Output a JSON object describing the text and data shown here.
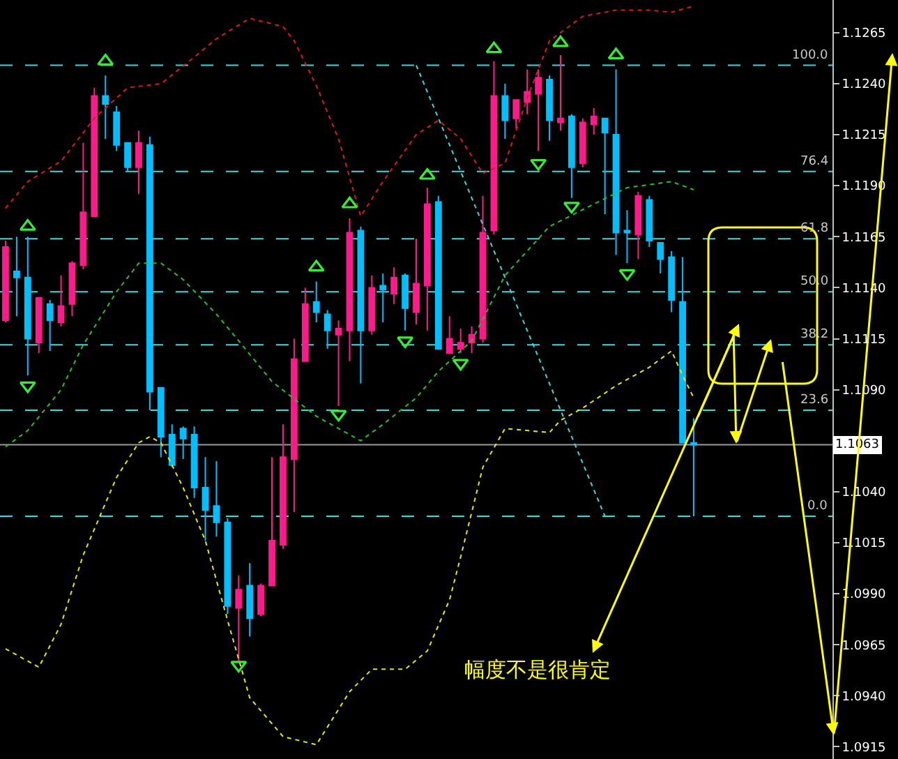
{
  "chart_data": {
    "type": "candlestick",
    "categories": [
      null,
      null,
      null,
      null,
      null,
      null,
      null,
      null,
      null,
      null,
      null,
      null,
      null,
      null,
      null,
      null,
      null,
      null,
      null,
      null,
      null,
      null,
      null,
      null,
      null,
      null,
      null,
      null,
      null,
      null,
      null,
      null,
      null,
      null,
      null,
      null,
      null,
      null,
      null,
      null,
      null,
      null,
      null,
      null,
      null,
      null,
      null,
      null,
      null,
      null,
      null,
      null,
      null,
      null,
      null,
      null,
      null,
      null,
      null,
      null,
      null,
      null,
      null,
      null,
      null,
      null,
      null,
      null,
      null,
      null,
      null,
      null,
      null,
      null,
      null
    ],
    "ohlc": [
      [
        1.1124,
        1.1163,
        1.1123,
        1.116
      ],
      [
        1.1148,
        1.1165,
        1.1126,
        1.1145
      ],
      [
        1.1145,
        1.1165,
        1.1097,
        1.1115
      ],
      [
        1.1113,
        1.1135,
        1.1108,
        1.1135
      ],
      [
        1.1132,
        1.1134,
        1.1109,
        1.1124
      ],
      [
        1.1123,
        1.1146,
        1.1121,
        1.1131
      ],
      [
        1.1132,
        1.1153,
        1.1126,
        1.1152
      ],
      [
        1.1151,
        1.1211,
        1.1149,
        1.1177
      ],
      [
        1.1175,
        1.1238,
        1.1175,
        1.1234
      ],
      [
        1.1234,
        1.1244,
        1.1213,
        1.123
      ],
      [
        1.1226,
        1.1229,
        1.1207,
        1.121
      ],
      [
        1.1211,
        1.1211,
        1.1197,
        1.1199
      ],
      [
        1.1199,
        1.1217,
        1.1186,
        1.1211
      ],
      [
        1.121,
        1.1214,
        1.108,
        1.1089
      ],
      [
        1.1091,
        1.1091,
        1.1057,
        1.1067
      ],
      [
        1.1068,
        1.1073,
        1.1052,
        1.1053
      ],
      [
        1.1071,
        1.1072,
        1.1056,
        1.1066
      ],
      [
        1.1068,
        1.1072,
        1.1037,
        1.1042
      ],
      [
        1.1042,
        1.1057,
        1.1016,
        1.1031
      ],
      [
        1.1033,
        1.1055,
        1.1018,
        1.1025
      ],
      [
        1.1025,
        1.1027,
        1.098,
        1.0984
      ],
      [
        1.0983,
        1.0999,
        1.0957,
        1.0992
      ],
      [
        1.0994,
        1.1005,
        1.0969,
        1.0978
      ],
      [
        1.098,
        1.0995,
        1.0979,
        1.0994
      ],
      [
        1.0994,
        1.1057,
        1.0994,
        1.1016
      ],
      [
        1.1014,
        1.1073,
        1.1012,
        1.1057
      ],
      [
        1.1056,
        1.1115,
        1.103,
        1.1105
      ],
      [
        1.1104,
        1.114,
        1.1104,
        1.1132
      ],
      [
        1.1133,
        1.1143,
        1.1123,
        1.1128
      ],
      [
        1.1127,
        1.1129,
        1.111,
        1.1119
      ],
      [
        1.1117,
        1.1124,
        1.1082,
        1.112
      ],
      [
        1.1119,
        1.1174,
        1.1104,
        1.1167
      ],
      [
        1.1168,
        1.117,
        1.1093,
        1.1119
      ],
      [
        1.1119,
        1.1146,
        1.1117,
        1.114
      ],
      [
        1.1141,
        1.1147,
        1.1123,
        1.1139
      ],
      [
        1.1137,
        1.115,
        1.1132,
        1.1145
      ],
      [
        1.1146,
        1.1147,
        1.1119,
        1.113
      ],
      [
        1.1128,
        1.1164,
        1.1122,
        1.1142
      ],
      [
        1.1141,
        1.1189,
        1.1119,
        1.1181
      ],
      [
        1.1182,
        1.1185,
        1.111,
        1.111
      ],
      [
        1.1108,
        1.1126,
        1.1108,
        1.1115
      ],
      [
        1.111,
        1.112,
        1.1108,
        1.1113
      ],
      [
        1.1113,
        1.1121,
        1.1108,
        1.1117
      ],
      [
        1.1115,
        1.1185,
        1.1113,
        1.1167
      ],
      [
        1.1168,
        1.1251,
        1.1166,
        1.1234
      ],
      [
        1.1234,
        1.124,
        1.1213,
        1.1222
      ],
      [
        1.1223,
        1.1232,
        1.1218,
        1.1232
      ],
      [
        1.1231,
        1.1247,
        1.1225,
        1.1236
      ],
      [
        1.1235,
        1.1247,
        1.1207,
        1.1243
      ],
      [
        1.1242,
        1.1244,
        1.1212,
        1.1222
      ],
      [
        1.1221,
        1.1254,
        1.1217,
        1.1223
      ],
      [
        1.1224,
        1.1225,
        1.1184,
        1.1199
      ],
      [
        1.1201,
        1.1223,
        1.1199,
        1.1221
      ],
      [
        1.122,
        1.1228,
        1.1215,
        1.1224
      ],
      [
        1.1223,
        1.1223,
        1.1176,
        1.1216
      ],
      [
        1.1215,
        1.1247,
        1.1156,
        1.1167
      ],
      [
        1.1168,
        1.1178,
        1.1152,
        1.1167
      ],
      [
        1.1166,
        1.1187,
        1.1154,
        1.1185
      ],
      [
        1.1183,
        1.1185,
        1.116,
        1.1163
      ],
      [
        1.1162,
        1.1162,
        1.1147,
        1.1154
      ],
      [
        1.1155,
        1.1158,
        1.1128,
        1.1134
      ],
      [
        1.1133,
        1.1155,
        1.1064,
        1.1064
      ],
      [
        1.1064,
        1.1076,
        1.1028,
        1.1063
      ],
      null,
      null,
      null,
      null,
      null,
      null,
      null,
      null,
      null,
      null,
      null,
      null
    ],
    "colors": [
      "#ff1a8c",
      "#00bfff",
      "#00bfff",
      "#ff1a8c",
      "#00bfff",
      "#ff1a8c",
      "#ff1a8c",
      "#ff1a8c",
      "#ff1a8c",
      "#00bfff",
      "#00bfff",
      "#00bfff",
      "#ff1a8c",
      "#00bfff",
      "#00bfff",
      "#00bfff",
      "#00bfff",
      "#00bfff",
      "#00bfff",
      "#00bfff",
      "#00bfff",
      "#ff1a8c",
      "#00bfff",
      "#ff1a8c",
      "#ff1a8c",
      "#ff1a8c",
      "#ff1a8c",
      "#ff1a8c",
      "#00bfff",
      "#00bfff",
      "#ff1a8c",
      "#ff1a8c",
      "#00bfff",
      "#ff1a8c",
      "#00bfff",
      "#ff1a8c",
      "#00bfff",
      "#ff1a8c",
      "#ff1a8c",
      "#00bfff",
      "#ff1a8c",
      "#ff1a8c",
      "#ff1a8c",
      "#ff1a8c",
      "#ff1a8c",
      "#00bfff",
      "#ff1a8c",
      "#ff1a8c",
      "#ff1a8c",
      "#00bfff",
      "#ff1a8c",
      "#00bfff",
      "#ff1a8c",
      "#ff1a8c",
      "#00bfff",
      "#00bfff",
      "#00bfff",
      "#ff1a8c",
      "#00bfff",
      "#00bfff",
      "#00bfff",
      "#00bfff",
      "#00bfff",
      null,
      null,
      null,
      null,
      null,
      null,
      null,
      null,
      null,
      null,
      null,
      null
    ],
    "series": [
      {
        "type": "line",
        "color": "#e01818",
        "line_style": "dotted",
        "values": [
          1.1179,
          null,
          1.1192,
          null,
          null,
          1.1202,
          null,
          null,
          1.1223,
          null,
          null,
          1.1238,
          null,
          null,
          1.124,
          null,
          null,
          1.1253,
          null,
          1.1262,
          null,
          null,
          1.1272,
          null,
          null,
          1.1268,
          1.1261,
          null,
          1.1239,
          null,
          1.1213,
          null,
          1.1175,
          null,
          1.1192,
          null,
          null,
          1.1215,
          null,
          1.1222,
          null,
          1.1213,
          null,
          1.1196,
          null,
          1.1201,
          null,
          1.1233,
          null,
          1.1261,
          null,
          null,
          1.1273,
          null,
          null,
          1.1276,
          null,
          null,
          1.1276,
          null,
          1.1275,
          null,
          1.1278,
          null,
          null,
          null,
          null,
          null,
          null,
          null,
          null,
          null,
          null,
          null,
          null
        ]
      },
      {
        "type": "line",
        "color": "#22c422",
        "line_style": "dotted",
        "values": [
          1.1062,
          null,
          1.107,
          null,
          null,
          1.109,
          null,
          1.1112,
          null,
          null,
          1.1138,
          null,
          1.1152,
          null,
          1.1152,
          null,
          1.1144,
          null,
          null,
          1.1127,
          null,
          1.1114,
          null,
          null,
          1.1094,
          null,
          null,
          null,
          1.1077,
          null,
          null,
          null,
          1.1065,
          null,
          1.1073,
          null,
          null,
          1.1086,
          null,
          1.1099,
          null,
          null,
          1.1114,
          null,
          null,
          1.1146,
          null,
          null,
          null,
          1.117,
          null,
          null,
          null,
          1.1181,
          null,
          null,
          1.1189,
          null,
          null,
          null,
          1.1192,
          null,
          1.1188,
          null,
          null,
          null,
          null,
          null,
          null,
          null,
          null,
          null,
          null,
          null,
          null
        ]
      },
      {
        "type": "line",
        "color": "#e8e800",
        "line_style": "dotted",
        "values": [
          1.0963,
          null,
          null,
          1.0954,
          null,
          1.0975,
          null,
          1.1009,
          null,
          null,
          1.1047,
          null,
          1.1064,
          1.1067,
          1.1064,
          null,
          1.1042,
          null,
          1.1016,
          null,
          1.0977,
          null,
          1.0939,
          null,
          null,
          1.092,
          null,
          null,
          1.0916,
          null,
          null,
          1.0942,
          null,
          1.0953,
          null,
          null,
          1.0953,
          null,
          1.0962,
          null,
          1.0987,
          1.1008,
          null,
          1.1052,
          null,
          1.1071,
          null,
          1.107,
          null,
          1.1069,
          1.1075,
          null,
          1.1081,
          null,
          null,
          1.1092,
          null,
          null,
          1.1101,
          null,
          1.1109,
          1.1097,
          1.1086,
          null,
          null,
          null,
          null,
          null,
          null,
          null,
          null,
          null,
          null,
          null,
          null
        ]
      },
      {
        "type": "line",
        "color": "#33dddd",
        "line_style": "dotted",
        "values": [
          null,
          null,
          null,
          null,
          null,
          null,
          null,
          null,
          null,
          null,
          null,
          null,
          null,
          null,
          null,
          null,
          null,
          null,
          null,
          null,
          null,
          null,
          null,
          null,
          null,
          null,
          null,
          null,
          null,
          null,
          null,
          null,
          null,
          null,
          null,
          null,
          null,
          1.1249,
          null,
          null,
          null,
          null,
          null,
          null,
          null,
          null,
          null,
          null,
          null,
          null,
          null,
          null,
          null,
          null,
          1.1028,
          null,
          null,
          null,
          null,
          null,
          null,
          null,
          null,
          null,
          null,
          null,
          null,
          null,
          null,
          null,
          null,
          null,
          null,
          null,
          null
        ]
      },
      {
        "type": "scatter",
        "color": "#33ee33",
        "marker": "triangle",
        "values": [
          null,
          null,
          1.117,
          null,
          null,
          null,
          null,
          null,
          null,
          1.1251,
          null,
          null,
          null,
          null,
          null,
          null,
          null,
          null,
          null,
          null,
          null,
          null,
          null,
          null,
          null,
          null,
          null,
          null,
          1.115,
          null,
          null,
          1.1181,
          null,
          null,
          null,
          null,
          null,
          null,
          1.1195,
          null,
          null,
          null,
          null,
          null,
          1.1257,
          null,
          null,
          null,
          null,
          null,
          1.126,
          null,
          null,
          null,
          null,
          1.1254,
          null,
          null,
          null,
          null,
          null,
          null,
          null,
          null,
          null,
          null,
          null,
          null,
          null,
          null,
          null,
          null,
          null,
          null,
          null
        ]
      },
      {
        "type": "scatter",
        "color": "#33ee33",
        "marker": "triangle",
        "values": [
          null,
          null,
          1.1092,
          null,
          null,
          null,
          null,
          null,
          null,
          null,
          null,
          null,
          null,
          null,
          null,
          null,
          null,
          null,
          null,
          null,
          null,
          1.0955,
          null,
          null,
          null,
          null,
          null,
          null,
          null,
          null,
          1.1078,
          null,
          null,
          null,
          null,
          null,
          1.1114,
          null,
          null,
          null,
          null,
          1.1103,
          null,
          null,
          null,
          null,
          null,
          null,
          1.1201,
          null,
          null,
          1.118,
          null,
          null,
          null,
          null,
          1.1147,
          null,
          null,
          null,
          null,
          null,
          null,
          null,
          null,
          null,
          null,
          null,
          null,
          null,
          null,
          null,
          null,
          null,
          null
        ]
      }
    ],
    "ylim": [
      1.0909,
      1.1281
    ],
    "yticks": [
      1.1265,
      {
        "value": 1.124,
        "label": "1.1240"
      },
      1.1215,
      {
        "value": 1.119,
        "label": "1.1190"
      },
      1.1165,
      {
        "value": 1.114,
        "label": "1.1140"
      },
      1.1115,
      {
        "value": 1.109,
        "label": "1.1090"
      },
      {
        "value": 1.104,
        "label": "1.1040"
      },
      1.1015,
      {
        "value": 1.099,
        "label": "1.0990"
      },
      1.0965,
      {
        "value": 1.094,
        "label": "1.0940"
      },
      1.0915
    ],
    "ref_lines": [
      {
        "axis": "y",
        "value": 1.1249,
        "color": "#33dddd",
        "line_style": "dashed"
      },
      {
        "axis": "y",
        "value": 1.1197,
        "color": "#33dddd",
        "line_style": "dashed"
      },
      {
        "axis": "y",
        "value": 1.1164,
        "color": "#33dddd",
        "line_style": "dashed"
      },
      {
        "axis": "y",
        "value": 1.1138,
        "color": "#33dddd",
        "line_style": "dashed"
      },
      {
        "axis": "y",
        "value": 1.1112,
        "color": "#33dddd",
        "line_style": "dashed"
      },
      {
        "axis": "y",
        "value": 1.108,
        "color": "#33dddd",
        "line_style": "dashed"
      },
      {
        "axis": "y",
        "value": 1.1028,
        "color": "#33dddd",
        "line_style": "dashed"
      },
      {
        "axis": "y",
        "value": 1.1063,
        "label": "1.1063",
        "color": "#9a9a9a",
        "line_style": "solid"
      }
    ],
    "annotations": [
      "幅度不是很肯定",
      {
        "text": "100.0",
        "y": 1.1249
      },
      {
        "text": "76.4",
        "y": 1.1197
      },
      {
        "text": "61.8",
        "y": 1.1164
      },
      {
        "text": "50.0",
        "y": 1.1138
      },
      {
        "text": "38.2",
        "y": 1.1112
      },
      {
        "text": "23.6",
        "y": 1.108
      },
      {
        "text": "0.0",
        "y": 1.1028
      }
    ],
    "tick_labels": "y",
    "grid": false
  }
}
